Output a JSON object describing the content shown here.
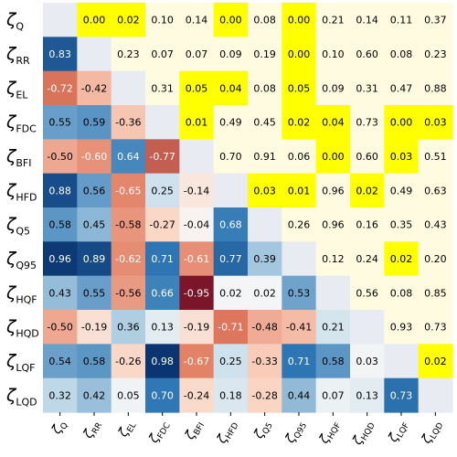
{
  "chart_data": {
    "type": "heatmap",
    "title": "",
    "row_labels": [
      {
        "base": "ζ",
        "sub": "Q"
      },
      {
        "base": "ζ",
        "sub": "RR"
      },
      {
        "base": "ζ",
        "sub": "EL"
      },
      {
        "base": "ζ",
        "sub": "FDC"
      },
      {
        "base": "ζ",
        "sub": "BFI"
      },
      {
        "base": "ζ",
        "sub": "HFD"
      },
      {
        "base": "ζ",
        "sub": "Q5"
      },
      {
        "base": "ζ",
        "sub": "Q95"
      },
      {
        "base": "ζ",
        "sub": "HQF"
      },
      {
        "base": "ζ",
        "sub": "HQD"
      },
      {
        "base": "ζ",
        "sub": "LQF"
      },
      {
        "base": "ζ",
        "sub": "LQD"
      }
    ],
    "col_labels": [
      {
        "base": "ζ",
        "sub": "Q"
      },
      {
        "base": "ζ",
        "sub": "RR"
      },
      {
        "base": "ζ",
        "sub": "EL"
      },
      {
        "base": "ζ",
        "sub": "FDC"
      },
      {
        "base": "ζ",
        "sub": "BFI"
      },
      {
        "base": "ζ",
        "sub": "HFD"
      },
      {
        "base": "ζ",
        "sub": "Q5"
      },
      {
        "base": "ζ",
        "sub": "Q95"
      },
      {
        "base": "ζ",
        "sub": "HQF"
      },
      {
        "base": "ζ",
        "sub": "HQD"
      },
      {
        "base": "ζ",
        "sub": "LQF"
      },
      {
        "base": "ζ",
        "sub": "LQD"
      }
    ],
    "matrix": [
      [
        null,
        "0.00",
        "0.02",
        "0.10",
        "0.14",
        "0.00",
        "0.08",
        "0.00",
        "0.21",
        "0.14",
        "0.11",
        "0.37"
      ],
      [
        "0.83",
        null,
        "0.23",
        "0.07",
        "0.07",
        "0.09",
        "0.19",
        "0.00",
        "0.10",
        "0.60",
        "0.08",
        "0.23"
      ],
      [
        "-0.72",
        "-0.42",
        null,
        "0.31",
        "0.05",
        "0.04",
        "0.08",
        "0.05",
        "0.09",
        "0.31",
        "0.47",
        "0.88"
      ],
      [
        "0.55",
        "0.59",
        "-0.36",
        null,
        "0.01",
        "0.49",
        "0.45",
        "0.02",
        "0.04",
        "0.73",
        "0.00",
        "0.03"
      ],
      [
        "-0.50",
        "-0.60",
        "0.64",
        "-0.77",
        null,
        "0.70",
        "0.91",
        "0.06",
        "0.00",
        "0.60",
        "0.03",
        "0.51"
      ],
      [
        "0.88",
        "0.56",
        "-0.65",
        "0.25",
        "-0.14",
        null,
        "0.03",
        "0.01",
        "0.96",
        "0.02",
        "0.49",
        "0.63"
      ],
      [
        "0.58",
        "0.45",
        "-0.58",
        "-0.27",
        "-0.04",
        "0.68",
        null,
        "0.26",
        "0.96",
        "0.16",
        "0.35",
        "0.43"
      ],
      [
        "0.96",
        "0.89",
        "-0.62",
        "0.71",
        "-0.61",
        "0.77",
        "0.39",
        null,
        "0.12",
        "0.24",
        "0.02",
        "0.20"
      ],
      [
        "0.43",
        "0.55",
        "-0.56",
        "0.66",
        "-0.95",
        "0.02",
        "0.02",
        "0.53",
        null,
        "0.56",
        "0.08",
        "0.85"
      ],
      [
        "-0.50",
        "-0.19",
        "0.36",
        "0.13",
        "-0.19",
        "-0.71",
        "-0.48",
        "-0.41",
        "0.21",
        null,
        "0.93",
        "0.73"
      ],
      [
        "0.54",
        "0.58",
        "-0.26",
        "0.98",
        "-0.67",
        "0.25",
        "-0.33",
        "0.71",
        "0.58",
        "0.03",
        null,
        "0.02"
      ],
      [
        "0.32",
        "0.42",
        "0.05",
        "0.70",
        "-0.24",
        "0.18",
        "-0.28",
        "0.44",
        "0.07",
        "0.13",
        "0.73",
        null
      ]
    ],
    "upper_triangle_meaning": "p-values; cells with p<=0.05 highlighted yellow",
    "lower_triangle_meaning": "correlation coefficients",
    "colors": {
      "diagonal": "#e8ebf2",
      "pvalue_significant": "#ffff00",
      "pvalue_nonsignificant": "#fffbe0",
      "positive_strong": "#08306b",
      "positive_mid": "#2f78b5",
      "positive_weak": "#c6ddea",
      "neutral": "#f7f7f7",
      "negative_weak": "#fbd3c0",
      "negative_mid": "#e07b60",
      "negative_strong": "#67001f"
    }
  }
}
